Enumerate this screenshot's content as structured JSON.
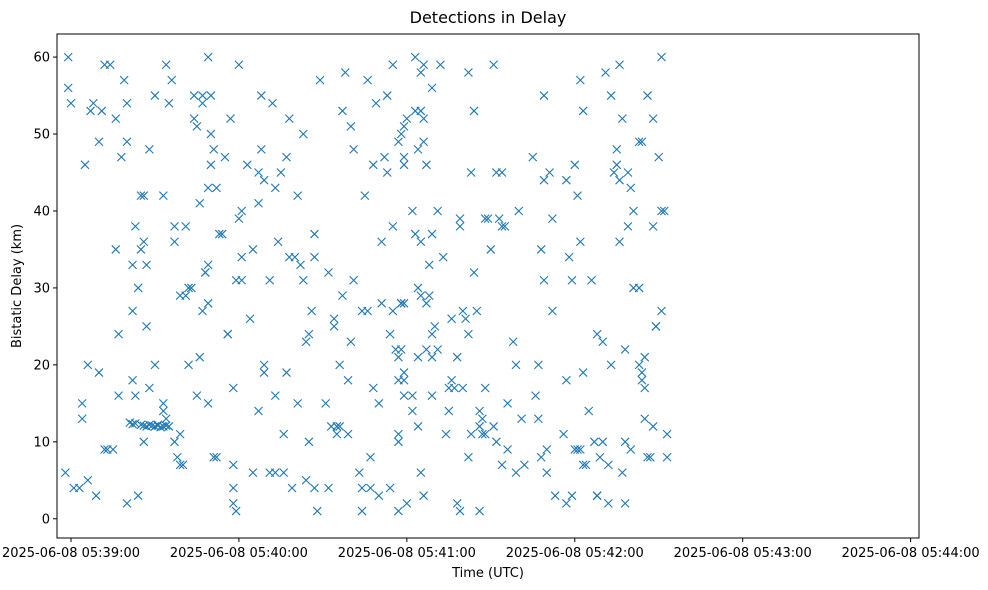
{
  "chart_data": {
    "type": "scatter",
    "title": "Detections in Delay",
    "xlabel": "Time (UTC)",
    "ylabel": "Bistatic Delay (km)",
    "x_axis": {
      "kind": "time",
      "range": [
        "2025-06-08 05:38:55",
        "2025-06-08 05:44:03"
      ],
      "ticks": [
        "2025-06-08 05:39:00",
        "2025-06-08 05:40:00",
        "2025-06-08 05:41:00",
        "2025-06-08 05:42:00",
        "2025-06-08 05:43:00",
        "2025-06-08 05:44:00"
      ]
    },
    "y_axis": {
      "range": [
        -2.5,
        63
      ],
      "ticks": [
        0,
        10,
        20,
        30,
        40,
        50,
        60
      ]
    },
    "grid": false,
    "marker": "x",
    "color": "#1f77b4",
    "points": [
      [
        "05:38:58",
        6
      ],
      [
        "05:38:59",
        56
      ],
      [
        "05:38:59",
        60
      ],
      [
        "05:39:00",
        54
      ],
      [
        "05:39:01",
        4
      ],
      [
        "05:39:03",
        4
      ],
      [
        "05:39:04",
        15
      ],
      [
        "05:39:04",
        13
      ],
      [
        "05:39:05",
        46
      ],
      [
        "05:39:06",
        20
      ],
      [
        "05:39:06",
        5
      ],
      [
        "05:39:07",
        53
      ],
      [
        "05:39:08",
        54
      ],
      [
        "05:39:09",
        3
      ],
      [
        "05:39:10",
        49
      ],
      [
        "05:39:10",
        19
      ],
      [
        "05:39:11",
        53
      ],
      [
        "05:39:12",
        9
      ],
      [
        "05:39:12",
        59
      ],
      [
        "05:39:13",
        9
      ],
      [
        "05:39:14",
        59
      ],
      [
        "05:39:15",
        9
      ],
      [
        "05:39:16",
        52
      ],
      [
        "05:39:16",
        35
      ],
      [
        "05:39:17",
        24
      ],
      [
        "05:39:17",
        16
      ],
      [
        "05:39:18",
        47
      ],
      [
        "05:39:19",
        57
      ],
      [
        "05:39:20",
        49
      ],
      [
        "05:39:20",
        54
      ],
      [
        "05:39:20",
        2
      ],
      [
        "05:39:21",
        12.5
      ],
      [
        "05:39:22",
        18
      ],
      [
        "05:39:22",
        12.3
      ],
      [
        "05:39:22",
        27
      ],
      [
        "05:39:22",
        33
      ],
      [
        "05:39:23",
        38
      ],
      [
        "05:39:23",
        16
      ],
      [
        "05:39:23",
        12.4
      ],
      [
        "05:39:24",
        3
      ],
      [
        "05:39:24",
        30
      ],
      [
        "05:39:25",
        42
      ],
      [
        "05:39:25",
        35
      ],
      [
        "05:39:25",
        12.2
      ],
      [
        "05:39:26",
        36
      ],
      [
        "05:39:26",
        42
      ],
      [
        "05:39:26",
        10
      ],
      [
        "05:39:26",
        12.1
      ],
      [
        "05:39:27",
        33
      ],
      [
        "05:39:27",
        25
      ],
      [
        "05:39:27",
        12.0
      ],
      [
        "05:39:28",
        48
      ],
      [
        "05:39:28",
        17
      ],
      [
        "05:39:28",
        12.2
      ],
      [
        "05:39:29",
        12.1
      ],
      [
        "05:39:30",
        55
      ],
      [
        "05:39:30",
        20
      ],
      [
        "05:39:30",
        12.0
      ],
      [
        "05:39:31",
        12.2
      ],
      [
        "05:39:31",
        12.1
      ],
      [
        "05:39:32",
        11.9
      ],
      [
        "05:39:33",
        42
      ],
      [
        "05:39:33",
        12.0
      ],
      [
        "05:39:33",
        14
      ],
      [
        "05:39:33",
        15
      ],
      [
        "05:39:34",
        12.1
      ],
      [
        "05:39:34",
        59
      ],
      [
        "05:39:34",
        13
      ],
      [
        "05:39:35",
        54
      ],
      [
        "05:39:35",
        12
      ],
      [
        "05:39:36",
        57
      ],
      [
        "05:39:37",
        38
      ],
      [
        "05:39:37",
        10
      ],
      [
        "05:39:37",
        36
      ],
      [
        "05:39:38",
        8
      ],
      [
        "05:39:39",
        29
      ],
      [
        "05:39:39",
        11
      ],
      [
        "05:39:39",
        7
      ],
      [
        "05:39:40",
        7
      ],
      [
        "05:39:41",
        38
      ],
      [
        "05:39:41",
        29
      ],
      [
        "05:39:42",
        20
      ],
      [
        "05:39:42",
        30
      ],
      [
        "05:39:43",
        30
      ],
      [
        "05:39:44",
        52
      ],
      [
        "05:39:44",
        55
      ],
      [
        "05:39:45",
        16
      ],
      [
        "05:39:45",
        51
      ],
      [
        "05:39:46",
        41
      ],
      [
        "05:39:46",
        21
      ],
      [
        "05:39:47",
        54
      ],
      [
        "05:39:47",
        27
      ],
      [
        "05:39:47",
        55
      ],
      [
        "05:39:48",
        32
      ],
      [
        "05:39:48",
        32
      ],
      [
        "05:39:49",
        60
      ],
      [
        "05:39:49",
        33
      ],
      [
        "05:39:49",
        28
      ],
      [
        "05:39:49",
        15
      ],
      [
        "05:39:49",
        43
      ],
      [
        "05:39:50",
        46
      ],
      [
        "05:39:50",
        50
      ],
      [
        "05:39:50",
        55
      ],
      [
        "05:39:51",
        48
      ],
      [
        "05:39:51",
        8
      ],
      [
        "05:39:52",
        43
      ],
      [
        "05:39:52",
        8
      ],
      [
        "05:39:53",
        37
      ],
      [
        "05:39:54",
        37
      ],
      [
        "05:39:55",
        47
      ],
      [
        "05:39:56",
        24
      ],
      [
        "05:39:56",
        24
      ],
      [
        "05:39:57",
        52
      ],
      [
        "05:39:58",
        17
      ],
      [
        "05:39:58",
        2
      ],
      [
        "05:39:58",
        4
      ],
      [
        "05:39:58",
        7
      ],
      [
        "05:39:59",
        31
      ],
      [
        "05:39:59",
        1
      ],
      [
        "05:40:00",
        39
      ],
      [
        "05:40:00",
        59
      ],
      [
        "05:40:01",
        40
      ],
      [
        "05:40:01",
        31
      ],
      [
        "05:40:01",
        34
      ],
      [
        "05:40:03",
        46
      ],
      [
        "05:40:04",
        26
      ],
      [
        "05:40:05",
        35
      ],
      [
        "05:40:05",
        6
      ],
      [
        "05:40:07",
        14
      ],
      [
        "05:40:07",
        41
      ],
      [
        "05:40:07",
        45
      ],
      [
        "05:40:08",
        48
      ],
      [
        "05:40:08",
        55
      ],
      [
        "05:40:09",
        19
      ],
      [
        "05:40:09",
        20
      ],
      [
        "05:40:09",
        44
      ],
      [
        "05:40:11",
        31
      ],
      [
        "05:40:11",
        6
      ],
      [
        "05:40:12",
        54
      ],
      [
        "05:40:13",
        6
      ],
      [
        "05:40:13",
        43
      ],
      [
        "05:40:13",
        16
      ],
      [
        "05:40:14",
        36
      ],
      [
        "05:40:15",
        45
      ],
      [
        "05:40:16",
        11
      ],
      [
        "05:40:16",
        6
      ],
      [
        "05:40:17",
        47
      ],
      [
        "05:40:17",
        19
      ],
      [
        "05:40:18",
        52
      ],
      [
        "05:40:18",
        34
      ],
      [
        "05:40:19",
        4
      ],
      [
        "05:40:20",
        34
      ],
      [
        "05:40:21",
        15
      ],
      [
        "05:40:21",
        42
      ],
      [
        "05:40:22",
        33
      ],
      [
        "05:40:23",
        50
      ],
      [
        "05:40:23",
        31
      ],
      [
        "05:40:24",
        23
      ],
      [
        "05:40:24",
        5
      ],
      [
        "05:40:25",
        10
      ],
      [
        "05:40:25",
        24
      ],
      [
        "05:40:26",
        27
      ],
      [
        "05:40:27",
        37
      ],
      [
        "05:40:27",
        4
      ],
      [
        "05:40:27",
        34
      ],
      [
        "05:40:28",
        1
      ],
      [
        "05:40:29",
        57
      ],
      [
        "05:40:31",
        15
      ],
      [
        "05:40:32",
        4
      ],
      [
        "05:40:32",
        32
      ],
      [
        "05:40:33",
        12
      ],
      [
        "05:40:34",
        25
      ],
      [
        "05:40:34",
        26
      ],
      [
        "05:40:35",
        12
      ],
      [
        "05:40:35",
        11
      ],
      [
        "05:40:36",
        20
      ],
      [
        "05:40:36",
        12
      ],
      [
        "05:40:37",
        53
      ],
      [
        "05:40:37",
        29
      ],
      [
        "05:40:38",
        58
      ],
      [
        "05:40:39",
        11
      ],
      [
        "05:40:39",
        18
      ],
      [
        "05:40:40",
        51
      ],
      [
        "05:40:40",
        23
      ],
      [
        "05:40:41",
        31
      ],
      [
        "05:40:41",
        48
      ],
      [
        "05:40:43",
        6
      ],
      [
        "05:40:44",
        1
      ],
      [
        "05:40:44",
        4
      ],
      [
        "05:40:44",
        27
      ],
      [
        "05:40:45",
        42
      ],
      [
        "05:40:46",
        57
      ],
      [
        "05:40:46",
        27
      ],
      [
        "05:40:47",
        4
      ],
      [
        "05:40:47",
        8
      ],
      [
        "05:40:48",
        46
      ],
      [
        "05:40:48",
        17
      ],
      [
        "05:40:49",
        54
      ],
      [
        "05:40:50",
        15
      ],
      [
        "05:40:50",
        3
      ],
      [
        "05:40:51",
        36
      ],
      [
        "05:40:51",
        28
      ],
      [
        "05:40:52",
        47
      ],
      [
        "05:40:53",
        55
      ],
      [
        "05:40:53",
        45
      ],
      [
        "05:40:54",
        4
      ],
      [
        "05:40:54",
        24
      ],
      [
        "05:40:55",
        27
      ],
      [
        "05:40:55",
        59
      ],
      [
        "05:40:55",
        38
      ],
      [
        "05:40:56",
        22
      ],
      [
        "05:40:57",
        18
      ],
      [
        "05:40:57",
        49
      ],
      [
        "05:40:57",
        11
      ],
      [
        "05:40:57",
        10
      ],
      [
        "05:40:57",
        1
      ],
      [
        "05:40:57",
        21
      ],
      [
        "05:40:58",
        28
      ],
      [
        "05:40:58",
        22
      ],
      [
        "05:40:58",
        50
      ],
      [
        "05:40:58",
        28
      ],
      [
        "05:40:59",
        18
      ],
      [
        "05:40:59",
        51
      ],
      [
        "05:40:59",
        28
      ],
      [
        "05:40:59",
        47
      ],
      [
        "05:40:59",
        46
      ],
      [
        "05:40:59",
        19
      ],
      [
        "05:40:59",
        16
      ],
      [
        "05:41:00",
        2
      ],
      [
        "05:41:00",
        52
      ],
      [
        "05:41:02",
        40
      ],
      [
        "05:41:02",
        14
      ],
      [
        "05:41:02",
        16
      ],
      [
        "05:41:03",
        37
      ],
      [
        "05:41:03",
        60
      ],
      [
        "05:41:03",
        53
      ],
      [
        "05:41:04",
        48
      ],
      [
        "05:41:04",
        30
      ],
      [
        "05:41:04",
        12
      ],
      [
        "05:41:04",
        21
      ],
      [
        "05:41:05",
        36
      ],
      [
        "05:41:05",
        53
      ],
      [
        "05:41:05",
        58
      ],
      [
        "05:41:05",
        6
      ],
      [
        "05:41:05",
        29
      ],
      [
        "05:41:06",
        49
      ],
      [
        "05:41:06",
        59
      ],
      [
        "05:41:06",
        52
      ],
      [
        "05:41:06",
        3
      ],
      [
        "05:41:07",
        46
      ],
      [
        "05:41:07",
        28
      ],
      [
        "05:41:07",
        22
      ],
      [
        "05:41:08",
        33
      ],
      [
        "05:41:08",
        29
      ],
      [
        "05:41:09",
        37
      ],
      [
        "05:41:09",
        24
      ],
      [
        "05:41:09",
        21
      ],
      [
        "05:41:09",
        16
      ],
      [
        "05:41:09",
        56
      ],
      [
        "05:41:10",
        25
      ],
      [
        "05:41:11",
        40
      ],
      [
        "05:41:11",
        22
      ],
      [
        "05:41:12",
        59
      ],
      [
        "05:41:13",
        34
      ],
      [
        "05:41:14",
        11
      ],
      [
        "05:41:15",
        17
      ],
      [
        "05:41:15",
        14
      ],
      [
        "05:41:16",
        26
      ],
      [
        "05:41:16",
        18
      ],
      [
        "05:41:17",
        17
      ],
      [
        "05:41:18",
        2
      ],
      [
        "05:41:18",
        21
      ],
      [
        "05:41:19",
        39
      ],
      [
        "05:41:19",
        1
      ],
      [
        "05:41:19",
        38
      ],
      [
        "05:41:20",
        17
      ],
      [
        "05:41:20",
        27
      ],
      [
        "05:41:21",
        26
      ],
      [
        "05:41:22",
        8
      ],
      [
        "05:41:22",
        58
      ],
      [
        "05:41:22",
        24
      ],
      [
        "05:41:23",
        45
      ],
      [
        "05:41:23",
        11
      ],
      [
        "05:41:24",
        32
      ],
      [
        "05:41:24",
        53
      ],
      [
        "05:41:25",
        27
      ],
      [
        "05:41:26",
        1
      ],
      [
        "05:41:26",
        12
      ],
      [
        "05:41:26",
        14
      ],
      [
        "05:41:27",
        11
      ],
      [
        "05:41:27",
        13
      ],
      [
        "05:41:28",
        17
      ],
      [
        "05:41:28",
        39
      ],
      [
        "05:41:28",
        11
      ],
      [
        "05:41:29",
        39
      ],
      [
        "05:41:30",
        35
      ],
      [
        "05:41:31",
        59
      ],
      [
        "05:41:31",
        12
      ],
      [
        "05:41:32",
        10
      ],
      [
        "05:41:32",
        45
      ],
      [
        "05:41:33",
        39
      ],
      [
        "05:41:34",
        38
      ],
      [
        "05:41:34",
        45
      ],
      [
        "05:41:34",
        7
      ],
      [
        "05:41:35",
        38
      ],
      [
        "05:41:36",
        9
      ],
      [
        "05:41:36",
        15
      ],
      [
        "05:41:38",
        23
      ],
      [
        "05:41:39",
        20
      ],
      [
        "05:41:39",
        6
      ],
      [
        "05:41:40",
        40
      ],
      [
        "05:41:41",
        13
      ],
      [
        "05:41:42",
        7
      ],
      [
        "05:41:45",
        47
      ],
      [
        "05:41:46",
        16
      ],
      [
        "05:41:47",
        13
      ],
      [
        "05:41:47",
        20
      ],
      [
        "05:41:48",
        8
      ],
      [
        "05:41:48",
        35
      ],
      [
        "05:41:49",
        44
      ],
      [
        "05:41:49",
        55
      ],
      [
        "05:41:49",
        31
      ],
      [
        "05:41:50",
        6
      ],
      [
        "05:41:50",
        9
      ],
      [
        "05:41:51",
        45
      ],
      [
        "05:41:52",
        39
      ],
      [
        "05:41:52",
        27
      ],
      [
        "05:41:53",
        3
      ],
      [
        "05:41:56",
        11
      ],
      [
        "05:41:57",
        44
      ],
      [
        "05:41:57",
        2
      ],
      [
        "05:41:57",
        18
      ],
      [
        "05:41:58",
        34
      ],
      [
        "05:41:59",
        31
      ],
      [
        "05:41:59",
        3
      ],
      [
        "05:42:00",
        9
      ],
      [
        "05:42:00",
        46
      ],
      [
        "05:42:01",
        42
      ],
      [
        "05:42:01",
        9
      ],
      [
        "05:42:02",
        9
      ],
      [
        "05:42:02",
        36
      ],
      [
        "05:42:02",
        57
      ],
      [
        "05:42:03",
        19
      ],
      [
        "05:42:03",
        53
      ],
      [
        "05:42:03",
        7
      ],
      [
        "05:42:04",
        7
      ],
      [
        "05:42:05",
        14
      ],
      [
        "05:42:06",
        31
      ],
      [
        "05:42:07",
        10
      ],
      [
        "05:42:08",
        3
      ],
      [
        "05:42:08",
        3
      ],
      [
        "05:42:08",
        24
      ],
      [
        "05:42:09",
        8
      ],
      [
        "05:42:10",
        10
      ],
      [
        "05:42:10",
        23
      ],
      [
        "05:42:11",
        58
      ],
      [
        "05:42:12",
        2
      ],
      [
        "05:42:12",
        7
      ],
      [
        "05:42:13",
        20
      ],
      [
        "05:42:13",
        55
      ],
      [
        "05:42:14",
        45
      ],
      [
        "05:42:15",
        48
      ],
      [
        "05:42:15",
        46
      ],
      [
        "05:42:16",
        59
      ],
      [
        "05:42:16",
        36
      ],
      [
        "05:42:16",
        44
      ],
      [
        "05:42:17",
        52
      ],
      [
        "05:42:17",
        6
      ],
      [
        "05:42:18",
        2
      ],
      [
        "05:42:18",
        22
      ],
      [
        "05:42:18",
        10
      ],
      [
        "05:42:19",
        38
      ],
      [
        "05:42:19",
        45
      ],
      [
        "05:42:20",
        43
      ],
      [
        "05:42:20",
        9
      ],
      [
        "05:42:21",
        30
      ],
      [
        "05:42:21",
        40
      ],
      [
        "05:42:23",
        49
      ],
      [
        "05:42:23",
        30
      ],
      [
        "05:42:23",
        20
      ],
      [
        "05:42:24",
        49
      ],
      [
        "05:42:24",
        19
      ],
      [
        "05:42:24",
        18
      ],
      [
        "05:42:25",
        21
      ],
      [
        "05:42:25",
        17
      ],
      [
        "05:42:25",
        13
      ],
      [
        "05:42:26",
        55
      ],
      [
        "05:42:26",
        8
      ],
      [
        "05:42:27",
        8
      ],
      [
        "05:42:28",
        52
      ],
      [
        "05:42:28",
        12
      ],
      [
        "05:42:28",
        38
      ],
      [
        "05:42:29",
        25
      ],
      [
        "05:42:29",
        25
      ],
      [
        "05:42:30",
        47
      ],
      [
        "05:42:31",
        27
      ],
      [
        "05:42:31",
        40
      ],
      [
        "05:42:31",
        60
      ],
      [
        "05:42:32",
        40
      ],
      [
        "05:42:33",
        8
      ],
      [
        "05:42:33",
        11
      ]
    ]
  }
}
